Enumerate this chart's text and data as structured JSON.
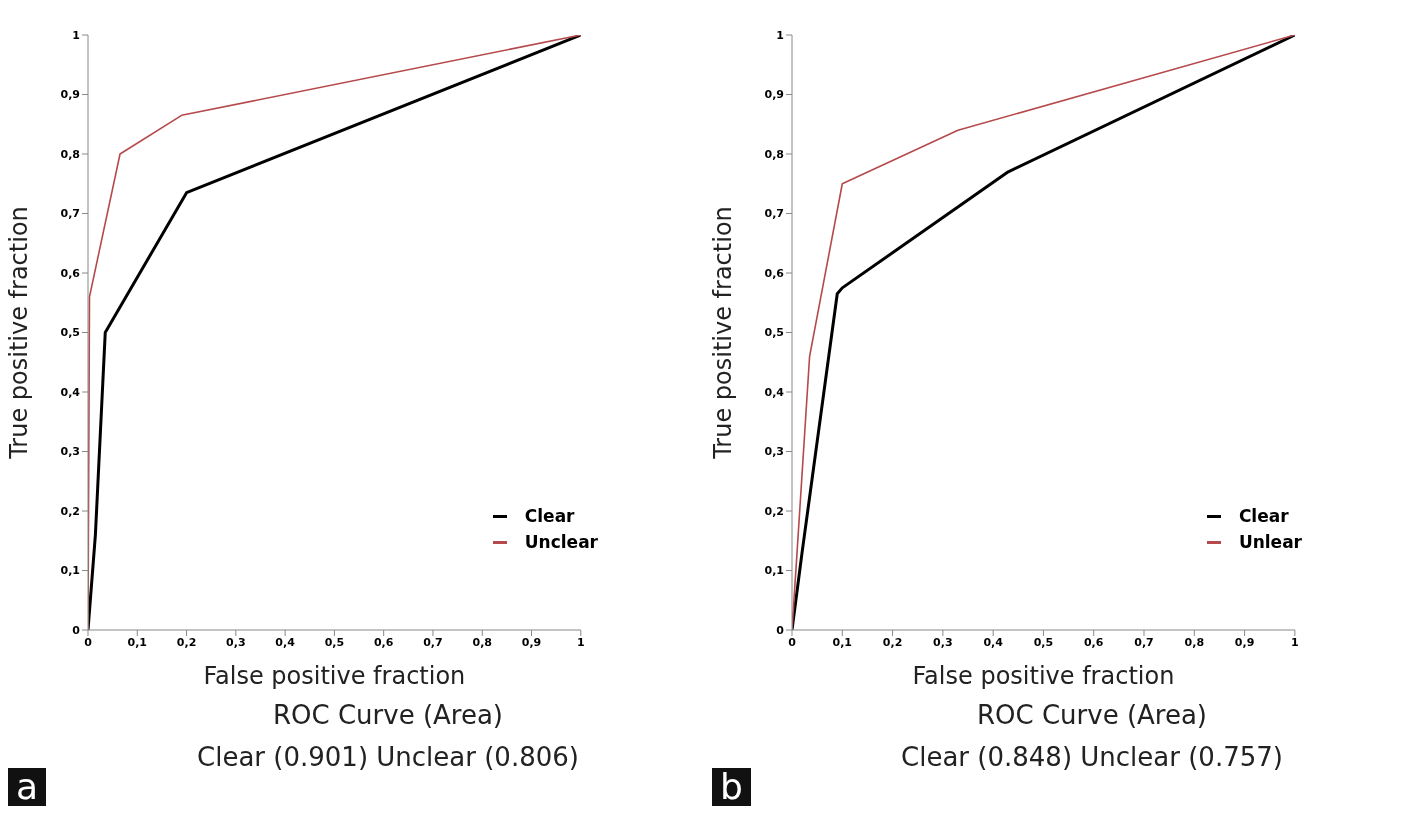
{
  "chart_data": [
    {
      "type": "line",
      "title": "ROC Curve (Area)",
      "subtitle": "Clear (0.901) Unclear (0.806)",
      "xlabel": "False positive fraction",
      "ylabel": "True positive fraction",
      "annotations": [
        "a"
      ],
      "xlim": [
        0,
        1
      ],
      "ylim": [
        0,
        1
      ],
      "xticks": [
        {
          "value": 0,
          "label": "0"
        },
        {
          "value": 0.1,
          "label": "0,1"
        },
        {
          "value": 0.2,
          "label": "0,2"
        },
        {
          "value": 0.3,
          "label": "0,3"
        },
        {
          "value": 0.4,
          "label": "0,4"
        },
        {
          "value": 0.5,
          "label": "0,5"
        },
        {
          "value": 0.6,
          "label": "0,6"
        },
        {
          "value": 0.7,
          "label": "0,7"
        },
        {
          "value": 0.8,
          "label": "0,8"
        },
        {
          "value": 0.9,
          "label": "0,9"
        },
        {
          "value": 1,
          "label": "1"
        }
      ],
      "yticks": [
        {
          "value": 0,
          "label": "0"
        },
        {
          "value": 0.1,
          "label": "0,1"
        },
        {
          "value": 0.2,
          "label": "0,2"
        },
        {
          "value": 0.3,
          "label": "0,3"
        },
        {
          "value": 0.4,
          "label": "0,4"
        },
        {
          "value": 0.5,
          "label": "0,5"
        },
        {
          "value": 0.6,
          "label": "0,6"
        },
        {
          "value": 0.7,
          "label": "0,7"
        },
        {
          "value": 0.8,
          "label": "0,8"
        },
        {
          "value": 0.9,
          "label": "0,9"
        },
        {
          "value": 1,
          "label": "1"
        }
      ],
      "legend": "bottom right",
      "grid": false,
      "marker": "none",
      "line_style": "solid",
      "series": [
        {
          "name": "Clear",
          "color": "#000000",
          "x": [
            0,
            0.015,
            0.035,
            0.2,
            1
          ],
          "values": [
            0,
            0.16,
            0.5,
            0.735,
            1
          ]
        },
        {
          "name": "Unclear",
          "color": "#b5494b",
          "x": [
            0,
            0.003,
            0.065,
            0.19,
            1
          ],
          "values": [
            0,
            0.56,
            0.8,
            0.865,
            1
          ]
        }
      ]
    },
    {
      "type": "line",
      "title": "ROC Curve (Area)",
      "subtitle": "Clear (0.848) Unclear (0.757)",
      "xlabel": "False positive fraction",
      "ylabel": "True positive fraction",
      "annotations": [
        "b"
      ],
      "xlim": [
        0,
        1
      ],
      "ylim": [
        0,
        1
      ],
      "xticks": [
        {
          "value": 0,
          "label": "0"
        },
        {
          "value": 0.1,
          "label": "0,1"
        },
        {
          "value": 0.2,
          "label": "0,2"
        },
        {
          "value": 0.3,
          "label": "0,3"
        },
        {
          "value": 0.4,
          "label": "0,4"
        },
        {
          "value": 0.5,
          "label": "0,5"
        },
        {
          "value": 0.6,
          "label": "0,6"
        },
        {
          "value": 0.7,
          "label": "0,7"
        },
        {
          "value": 0.8,
          "label": "0,8"
        },
        {
          "value": 0.9,
          "label": "0,9"
        },
        {
          "value": 1,
          "label": "1"
        }
      ],
      "yticks": [
        {
          "value": 0,
          "label": "0"
        },
        {
          "value": 0.1,
          "label": "0,1"
        },
        {
          "value": 0.2,
          "label": "0,2"
        },
        {
          "value": 0.3,
          "label": "0,3"
        },
        {
          "value": 0.4,
          "label": "0,4"
        },
        {
          "value": 0.5,
          "label": "0,5"
        },
        {
          "value": 0.6,
          "label": "0,6"
        },
        {
          "value": 0.7,
          "label": "0,7"
        },
        {
          "value": 0.8,
          "label": "0,8"
        },
        {
          "value": 0.9,
          "label": "0,9"
        },
        {
          "value": 1,
          "label": "1"
        }
      ],
      "legend": "bottom right",
      "grid": false,
      "marker": "none",
      "line_style": "solid",
      "series": [
        {
          "name": "Clear",
          "color": "#000000",
          "x": [
            0,
            0.02,
            0.09,
            0.1,
            0.43,
            1
          ],
          "values": [
            0,
            0.13,
            0.565,
            0.575,
            0.77,
            1
          ]
        },
        {
          "name": "Unlear",
          "color": "#b5494b",
          "x": [
            0,
            0.01,
            0.035,
            0.1,
            0.33,
            1
          ],
          "values": [
            0,
            0.13,
            0.46,
            0.75,
            0.84,
            1
          ]
        }
      ]
    }
  ]
}
